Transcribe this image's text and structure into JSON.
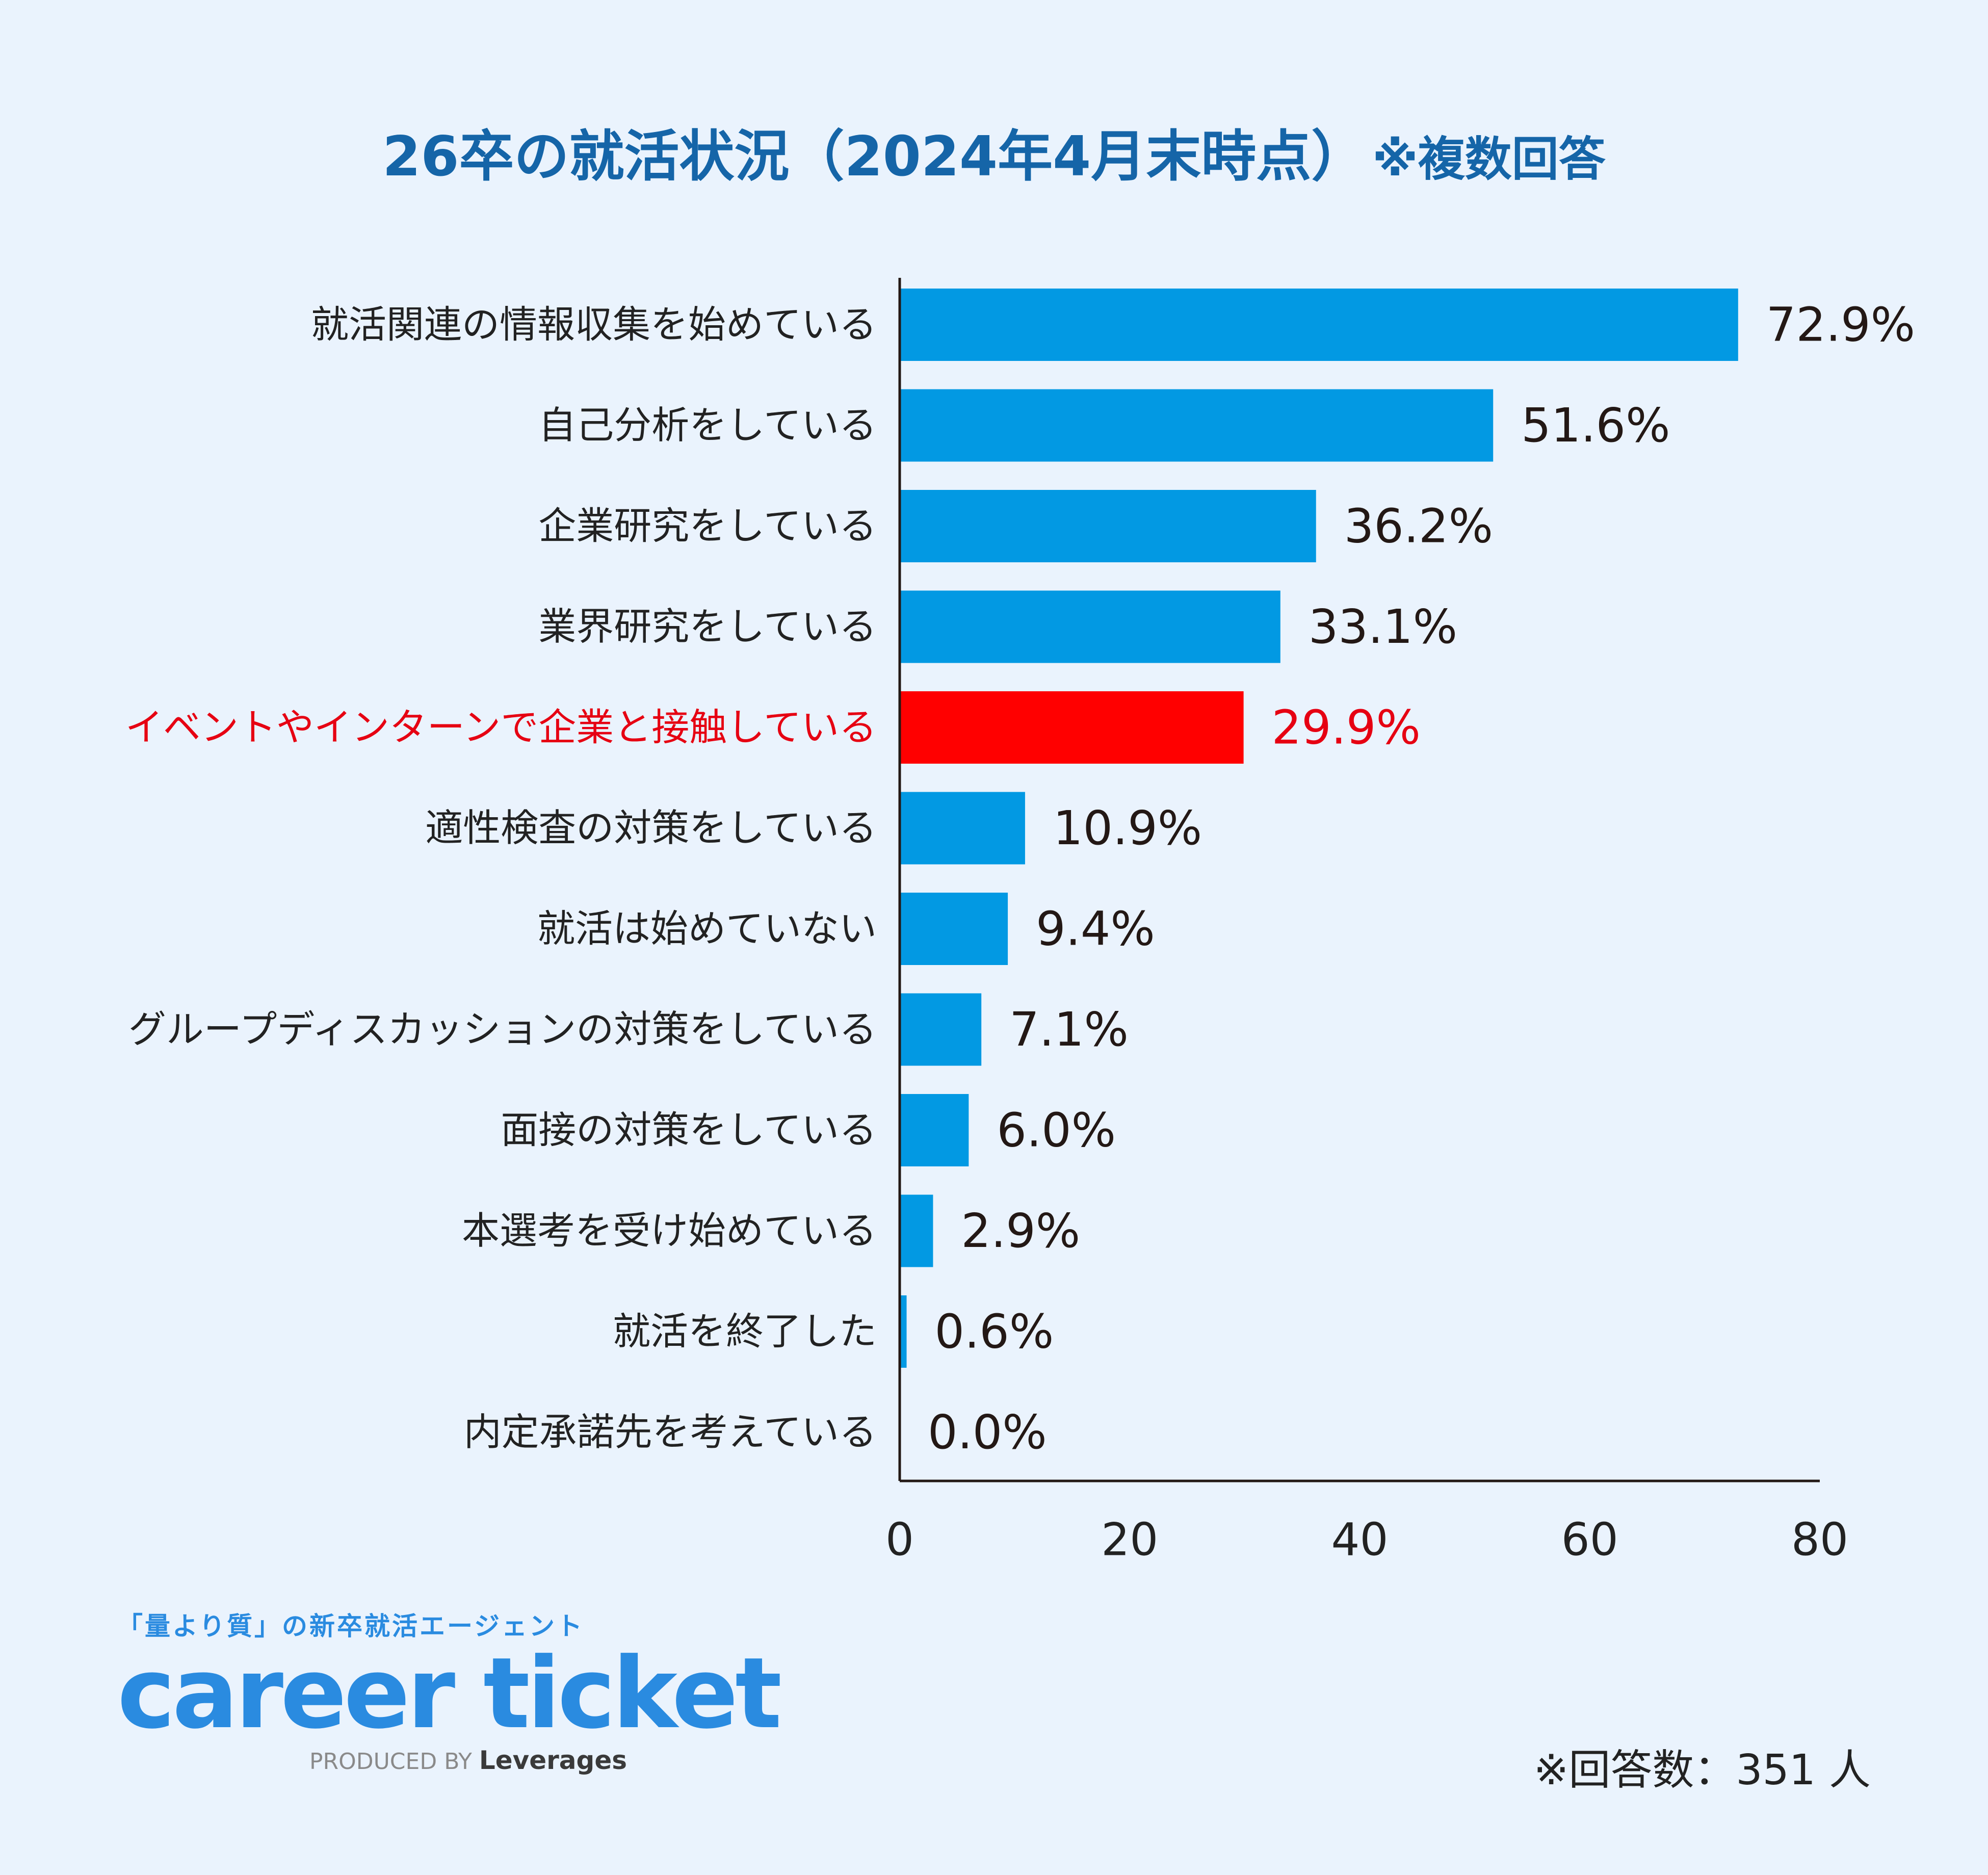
{
  "title": {
    "main": "26卒の就活状況（2024年4月末時点）",
    "note": "※複数回答"
  },
  "chart_data": {
    "type": "bar",
    "orientation": "horizontal",
    "title": "26卒の就活状況（2024年4月末時点）※複数回答",
    "categories": [
      "就活関連の情報収集を始めている",
      "自己分析をしている",
      "企業研究をしている",
      "業界研究をしている",
      "イベントやインターンで企業と接触している",
      "適性検査の対策をしている",
      "就活は始めていない",
      "グループディスカッションの対策をしている",
      "面接の対策をしている",
      "本選考を受け始めている",
      "就活を終了した",
      "内定承諾先を考えている"
    ],
    "values": [
      72.9,
      51.6,
      36.2,
      33.1,
      29.9,
      10.9,
      9.4,
      7.1,
      6.0,
      2.9,
      0.6,
      0.0
    ],
    "value_labels": [
      "72.9%",
      "51.6%",
      "36.2%",
      "33.1%",
      "29.9%",
      "10.9%",
      "9.4%",
      "7.1%",
      "6.0%",
      "2.9%",
      "0.6%",
      "0.0%"
    ],
    "highlight_index": 4,
    "xlim": [
      0,
      80
    ],
    "xticks": [
      0,
      20,
      40,
      60,
      80
    ],
    "xlabel": "",
    "ylabel": "",
    "grid": false,
    "colors": {
      "bar": "#0299e3",
      "highlight": "#ff0000",
      "highlight_text": "#e60012",
      "axis": "#231815"
    }
  },
  "logo": {
    "tagline": "「量より質」の新卒就活エージェント",
    "name": "career ticket",
    "produced_by": "PRODUCED BY",
    "company": "Leverages"
  },
  "footnote": "※回答数：351 人"
}
